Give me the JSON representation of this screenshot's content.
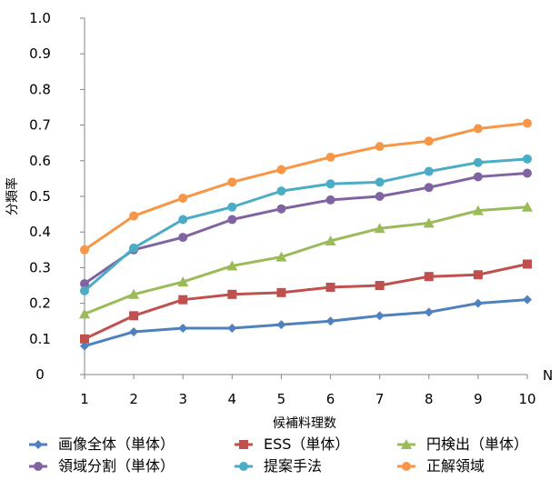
{
  "chart_data": {
    "type": "line",
    "title": "",
    "xlabel": "候補料理数",
    "ylabel": "分類率",
    "x_end_label": "N",
    "x": [
      1,
      2,
      3,
      4,
      5,
      6,
      7,
      8,
      9,
      10
    ],
    "ylim": [
      0,
      1.0
    ],
    "y_ticks": [
      "0",
      "0.1",
      "0.2",
      "0.3",
      "0.4",
      "0.5",
      "0.6",
      "0.7",
      "0.8",
      "0.9",
      "1.0"
    ],
    "grid": false,
    "legend_position": "bottom",
    "series": [
      {
        "name": "画像全体（単体）",
        "color": "#4e81bd",
        "marker": "diamond",
        "values": [
          0.08,
          0.12,
          0.13,
          0.13,
          0.14,
          0.15,
          0.165,
          0.175,
          0.2,
          0.21
        ]
      },
      {
        "name": "ESS（単体）",
        "color": "#c0504d",
        "marker": "square",
        "values": [
          0.1,
          0.165,
          0.21,
          0.225,
          0.23,
          0.245,
          0.25,
          0.275,
          0.28,
          0.31
        ]
      },
      {
        "name": "円検出（単体）",
        "color": "#9bbb59",
        "marker": "triangle",
        "values": [
          0.17,
          0.225,
          0.26,
          0.305,
          0.33,
          0.375,
          0.41,
          0.425,
          0.46,
          0.47
        ]
      },
      {
        "name": "領域分割（単体）",
        "color": "#8064a2",
        "marker": "circle",
        "values": [
          0.255,
          0.35,
          0.385,
          0.435,
          0.465,
          0.49,
          0.5,
          0.525,
          0.555,
          0.565
        ]
      },
      {
        "name": "提案手法",
        "color": "#4bacc6",
        "marker": "circle",
        "values": [
          0.235,
          0.355,
          0.435,
          0.47,
          0.515,
          0.535,
          0.54,
          0.57,
          0.595,
          0.605
        ]
      },
      {
        "name": "正解領域",
        "color": "#f79646",
        "marker": "circle",
        "values": [
          0.35,
          0.445,
          0.495,
          0.54,
          0.575,
          0.61,
          0.64,
          0.655,
          0.69,
          0.705
        ]
      }
    ]
  }
}
